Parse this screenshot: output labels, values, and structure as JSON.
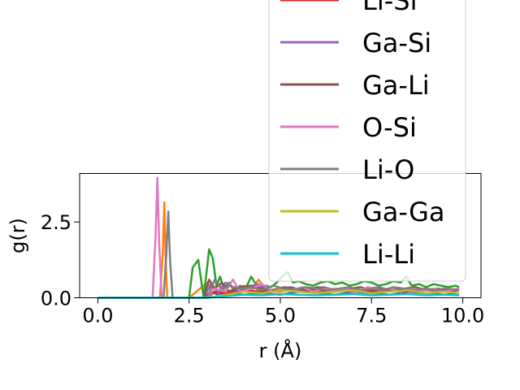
{
  "chart_data": {
    "type": "line",
    "xlabel": "r (Å)",
    "ylabel": "g(r)",
    "xlim": [
      -0.5,
      10.5
    ],
    "ylim": [
      0,
      4.1
    ],
    "x_ticks": [
      "0.0",
      "2.5",
      "5.0",
      "7.5",
      "10.0"
    ],
    "y_ticks": [
      "0.0",
      "2.5"
    ],
    "grid": false,
    "legend_placement": "upper right",
    "series": [
      {
        "name": "",
        "color": "#1f77b4",
        "x": [
          0,
          1.0,
          2.0,
          2.9,
          3.0,
          3.1,
          3.3,
          3.6,
          4.0,
          4.5,
          5.0,
          5.5,
          6.0,
          6.5,
          7.0,
          7.5,
          8.0,
          8.5,
          9.0,
          9.5,
          9.9
        ],
        "y": [
          0,
          0,
          0,
          0,
          0.1,
          0.2,
          0.1,
          0.15,
          0.1,
          0.15,
          0.1,
          0.2,
          0.15,
          0.1,
          0.2,
          0.15,
          0.1,
          0.2,
          0.15,
          0.1,
          0.15
        ]
      },
      {
        "name": "",
        "color": "#ff7f0e",
        "x": [
          0,
          1.0,
          1.7,
          1.78,
          1.82,
          1.86,
          1.9,
          2.0,
          2.5,
          3.0,
          3.1,
          3.3,
          3.5,
          3.8,
          4.0,
          4.2,
          4.4,
          4.6,
          4.8,
          5.0,
          5.5,
          6.0,
          6.5,
          7.0,
          7.5,
          8.0,
          8.5,
          9.0,
          9.5,
          9.9
        ],
        "y": [
          0,
          0,
          0,
          1.5,
          3.15,
          1.2,
          0,
          0,
          0,
          0.5,
          0.3,
          0.4,
          0.2,
          0.3,
          0.4,
          0.2,
          0.6,
          0.3,
          0.2,
          0.2,
          0.3,
          0.2,
          0.3,
          0.2,
          0.25,
          0.3,
          0.2,
          0.25,
          0.2,
          0.25
        ]
      },
      {
        "name": "",
        "color": "#2ca02c",
        "x": [
          0,
          1.0,
          2.0,
          2.5,
          2.6,
          2.75,
          2.9,
          3.05,
          3.15,
          3.25,
          3.35,
          3.45,
          3.6,
          3.75,
          3.9,
          4.05,
          4.2,
          4.3,
          4.45,
          4.6,
          4.75,
          4.9,
          5.05,
          5.2,
          5.35,
          5.5,
          5.7,
          5.9,
          6.1,
          6.3,
          6.5,
          6.7,
          6.9,
          7.1,
          7.3,
          7.5,
          7.7,
          7.9,
          8.1,
          8.3,
          8.45,
          8.6,
          8.8,
          9.0,
          9.2,
          9.4,
          9.6,
          9.8,
          9.9
        ],
        "y": [
          0,
          0,
          0,
          0,
          1.0,
          1.25,
          0,
          1.6,
          1.3,
          0.4,
          0.7,
          0.3,
          0.5,
          0.2,
          0.4,
          0.3,
          0.7,
          0.5,
          0.3,
          0.4,
          0.35,
          0.5,
          0.7,
          0.85,
          0.5,
          0.55,
          0.45,
          0.4,
          0.5,
          0.55,
          0.45,
          0.5,
          0.4,
          0.45,
          0.55,
          0.5,
          0.4,
          0.45,
          0.55,
          0.5,
          0.7,
          0.4,
          0.45,
          0.35,
          0.45,
          0.4,
          0.35,
          0.4,
          0.35
        ]
      },
      {
        "name": "",
        "color": "#d62728",
        "x": [
          0,
          2.0,
          3.0,
          3.2,
          3.5,
          4.0,
          4.5,
          5.0,
          5.5,
          6.0,
          6.5,
          7.0,
          7.5,
          8.0,
          8.5,
          9.0,
          9.5,
          9.9
        ],
        "y": [
          0,
          0,
          0,
          0.2,
          0.15,
          0.25,
          0.2,
          0.3,
          0.2,
          0.25,
          0.2,
          0.3,
          0.2,
          0.25,
          0.2,
          0.3,
          0.2,
          0.25
        ]
      },
      {
        "name": "Li-Si",
        "color": "#d62728",
        "x": [],
        "y": []
      },
      {
        "name": "Ga-Si",
        "color": "#9467bd",
        "x": [
          0,
          2.0,
          2.9,
          3.1,
          3.3,
          3.5,
          3.8,
          4.1,
          4.4,
          4.7,
          5.0,
          5.3,
          5.6,
          5.9,
          6.2,
          6.5,
          6.8,
          7.1,
          7.4,
          7.7,
          8.0,
          8.3,
          8.6,
          8.9,
          9.2,
          9.5,
          9.9
        ],
        "y": [
          0,
          0,
          0,
          0.45,
          0.2,
          0.5,
          0.25,
          0.35,
          0.45,
          0.2,
          0.3,
          0.35,
          0.25,
          0.3,
          0.35,
          0.25,
          0.3,
          0.2,
          0.3,
          0.35,
          0.25,
          0.3,
          0.2,
          0.3,
          0.25,
          0.3,
          0.25
        ]
      },
      {
        "name": "Ga-Li",
        "color": "#8c564b",
        "x": [
          0,
          2.0,
          2.9,
          3.05,
          3.2,
          3.4,
          3.6,
          3.9,
          4.2,
          4.5,
          4.8,
          5.1,
          5.4,
          5.7,
          6.0,
          6.3,
          6.6,
          6.9,
          7.2,
          7.5,
          7.8,
          8.1,
          8.4,
          8.7,
          9.0,
          9.3,
          9.6,
          9.9
        ],
        "y": [
          0,
          0,
          0,
          0.6,
          0.3,
          0.5,
          0.2,
          0.35,
          0.4,
          0.3,
          0.25,
          0.35,
          0.3,
          0.25,
          0.35,
          0.3,
          0.25,
          0.3,
          0.35,
          0.25,
          0.3,
          0.25,
          0.3,
          0.35,
          0.25,
          0.3,
          0.25,
          0.3
        ]
      },
      {
        "name": "O-Si",
        "color": "#e377c2",
        "x": [
          0,
          1.0,
          1.5,
          1.58,
          1.63,
          1.68,
          1.75,
          2.0,
          2.5,
          3.0,
          3.2,
          3.5,
          3.7,
          3.9,
          4.2,
          4.5,
          4.8,
          5.0,
          5.3,
          5.6,
          5.9,
          6.2,
          6.5,
          6.8,
          7.1,
          7.4,
          7.7,
          8.0,
          8.3,
          8.6,
          8.9,
          9.2,
          9.5,
          9.9
        ],
        "y": [
          0,
          0,
          0,
          2.0,
          3.95,
          1.8,
          0,
          0,
          0,
          0,
          0.3,
          0.2,
          0.6,
          0.2,
          0.3,
          0.45,
          0.2,
          0.3,
          0.25,
          0.35,
          0.2,
          0.3,
          0.25,
          0.3,
          0.2,
          0.35,
          0.25,
          0.3,
          0.2,
          0.3,
          0.25,
          0.3,
          0.2,
          0.3
        ]
      },
      {
        "name": "Li-O",
        "color": "#7f7f7f",
        "x": [
          0,
          1.0,
          1.8,
          1.88,
          1.93,
          1.98,
          2.05,
          2.5,
          3.0,
          3.2,
          3.4,
          3.6,
          3.9,
          4.2,
          4.5,
          4.8,
          5.1,
          5.4,
          5.7,
          6.0,
          6.3,
          6.6,
          6.9,
          7.2,
          7.5,
          7.8,
          8.1,
          8.4,
          8.7,
          9.0,
          9.3,
          9.6,
          9.9
        ],
        "y": [
          0,
          0,
          0,
          1.5,
          2.85,
          1.2,
          0,
          0,
          0,
          0.6,
          0.3,
          0.4,
          0.3,
          0.35,
          0.25,
          0.4,
          0.3,
          0.25,
          0.35,
          0.3,
          0.25,
          0.3,
          0.35,
          0.25,
          0.3,
          0.25,
          0.35,
          0.3,
          0.25,
          0.3,
          0.25,
          0.3,
          0.25
        ]
      },
      {
        "name": "Ga-Ga",
        "color": "#bcbd22",
        "x": [
          0,
          3.0,
          3.5,
          4.0,
          4.5,
          5.0,
          5.5,
          6.0,
          6.5,
          7.0,
          7.5,
          8.0,
          8.5,
          9.0,
          9.5,
          9.9
        ],
        "y": [
          0,
          0,
          0.1,
          0.2,
          0.15,
          0.25,
          0.2,
          0.15,
          0.2,
          0.25,
          0.15,
          0.2,
          0.25,
          0.15,
          0.2,
          0.15
        ]
      },
      {
        "name": "Li-Li",
        "color": "#17becf",
        "x": [
          0,
          3.0,
          3.5,
          4.0,
          4.5,
          5.0,
          5.5,
          6.0,
          6.5,
          7.0,
          7.5,
          8.0,
          8.5,
          9.0,
          9.5,
          9.9
        ],
        "y": [
          0,
          0,
          0.05,
          0.1,
          0.08,
          0.12,
          0.1,
          0.08,
          0.1,
          0.12,
          0.08,
          0.1,
          0.12,
          0.08,
          0.1,
          0.08
        ]
      }
    ]
  }
}
